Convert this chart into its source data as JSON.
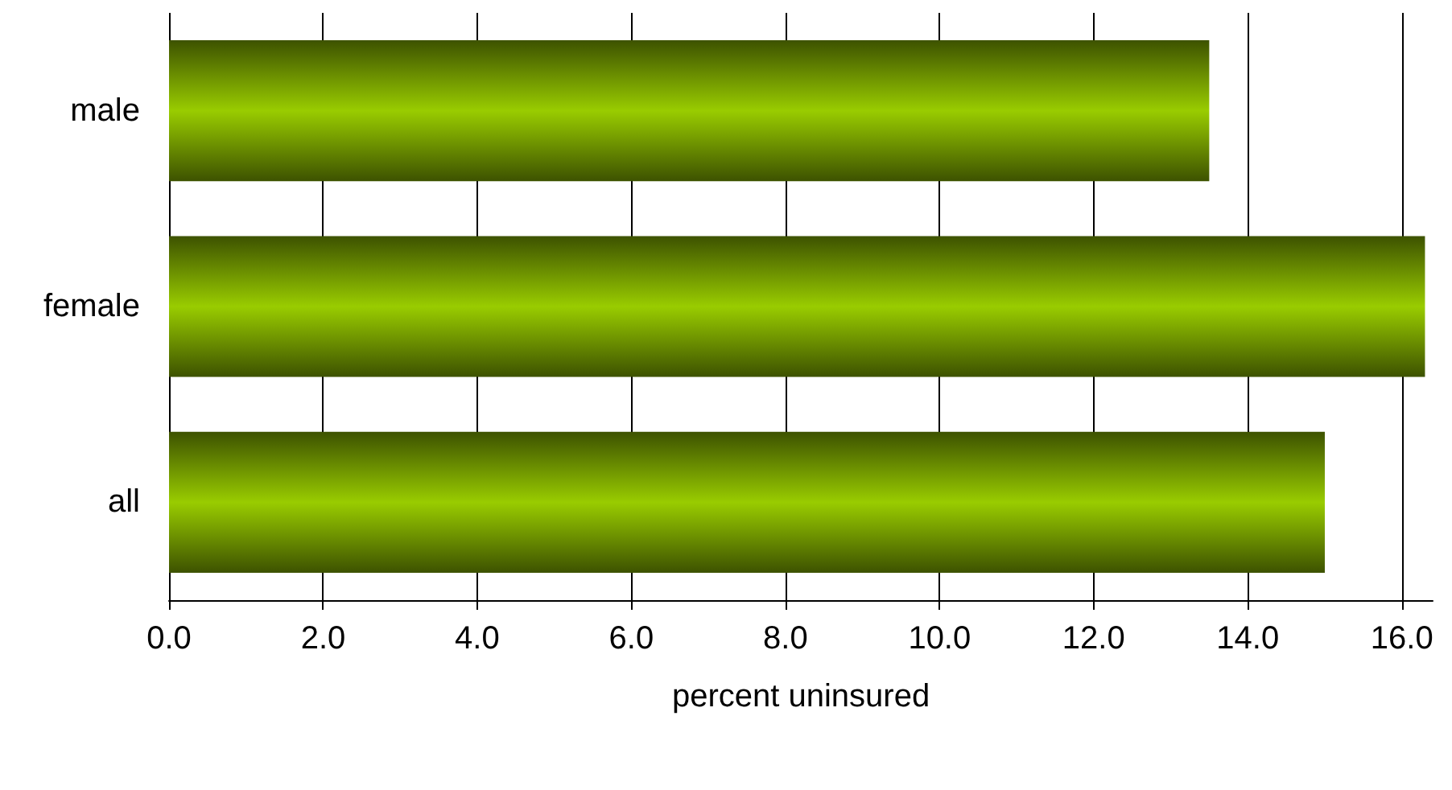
{
  "chart_data": {
    "type": "bar",
    "orientation": "horizontal",
    "xlabel": "percent uninsured",
    "categories": [
      "male",
      "female",
      "all"
    ],
    "values": [
      13.5,
      16.3,
      15.0
    ],
    "color": "#99cc00",
    "xlim": [
      0,
      16.4
    ],
    "xticks": [
      {
        "value": 0,
        "label": "0.0"
      },
      {
        "value": 2,
        "label": "2.0"
      },
      {
        "value": 4,
        "label": "4.0"
      },
      {
        "value": 6,
        "label": "6.0"
      },
      {
        "value": 8,
        "label": "8.0"
      },
      {
        "value": 10,
        "label": "10.0"
      },
      {
        "value": 12,
        "label": "12.0"
      },
      {
        "value": 14,
        "label": "14.0"
      },
      {
        "value": 16,
        "label": "16.0"
      }
    ],
    "grid": "x"
  }
}
